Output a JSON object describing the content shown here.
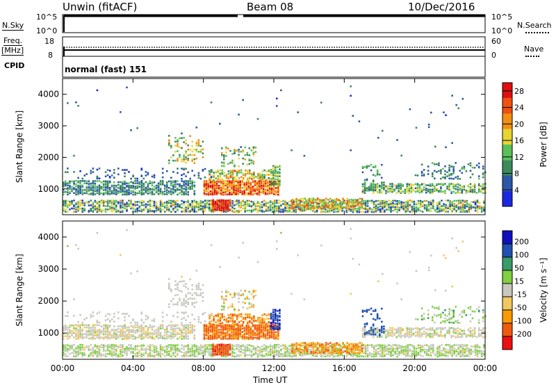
{
  "header": {
    "station": "Unwin (fitACF)",
    "beam": "Beam 08",
    "date": "10/Dec/2016"
  },
  "nsky_panel": {
    "left_label": "N.Sky",
    "left_ticks": [
      "10^5",
      "10^0"
    ],
    "right_label": "N.Search",
    "right_ticks": [
      "10^5",
      "10^0"
    ]
  },
  "freq_panel": {
    "left_label_1": "Freq.",
    "left_label_2": "[MHz]",
    "left_ticks": [
      "18",
      "8"
    ],
    "right_label": "Nave",
    "right_ticks": [
      "60",
      "0"
    ]
  },
  "cpid_panel": {
    "label": "CPID",
    "text": "normal (fast) 151"
  },
  "colors": {
    "power_scale": [
      "#1c28e0",
      "#2c58a8",
      "#3b8a5a",
      "#5cc05a",
      "#e8d432",
      "#f09010",
      "#f05010",
      "#e01010"
    ],
    "velocity_scale": [
      "#ee1010",
      "#f05a10",
      "#f89a00",
      "#f0c860",
      "#c8c8c0",
      "#80d040",
      "#3a9a6a",
      "#2050b0",
      "#1010c0"
    ]
  },
  "chart_data": {
    "type": "heatmap",
    "x_axis": {
      "label": "Time UT",
      "range": [
        "00:00",
        "24:00"
      ],
      "ticks": [
        "00:00",
        "04:00",
        "08:00",
        "12:00",
        "16:00",
        "20:00",
        "00:00"
      ]
    },
    "panels": [
      {
        "id": "power",
        "ylabel": "Slant Range [km]",
        "ylim": [
          180,
          4500
        ],
        "yticks": [
          "1000",
          "2000",
          "3000",
          "4000"
        ],
        "colorbar": {
          "label": "Power [dB]",
          "ticks": [
            "28",
            "24",
            "20",
            "16",
            "12",
            "8",
            "4"
          ],
          "range": [
            0,
            30
          ]
        }
      },
      {
        "id": "velocity",
        "ylabel": "Slant Range [km]",
        "ylim": [
          180,
          4500
        ],
        "yticks": [
          "1000",
          "2000",
          "3000",
          "4000"
        ],
        "colorbar": {
          "label": "Velocity [m s⁻¹]",
          "ticks": [
            "200",
            "100",
            "50",
            "15",
            "-15",
            "-50",
            "-100",
            "-200"
          ]
        }
      }
    ],
    "features": [
      {
        "name": "near-range band",
        "hours": [
          0,
          24
        ],
        "range_km": [
          250,
          600
        ]
      },
      {
        "name": "main 1000 km band",
        "hours": [
          0,
          12.3
        ],
        "range_km": [
          800,
          1250
        ]
      },
      {
        "name": "late 1000 km band",
        "hours": [
          17,
          24
        ],
        "range_km": [
          850,
          1150
        ]
      },
      {
        "name": "arc",
        "hours": [
          6,
          8
        ],
        "range_km": [
          1800,
          2700
        ]
      },
      {
        "name": "strong patch",
        "hours": [
          8.3,
          12
        ],
        "range_km": [
          800,
          1600
        ]
      },
      {
        "name": "low-range feature",
        "hours": [
          13,
          17
        ],
        "range_km": [
          350,
          700
        ]
      },
      {
        "name": "rising arc",
        "hours": [
          17,
          18.3
        ],
        "range_km": [
          900,
          1750
        ]
      }
    ]
  }
}
